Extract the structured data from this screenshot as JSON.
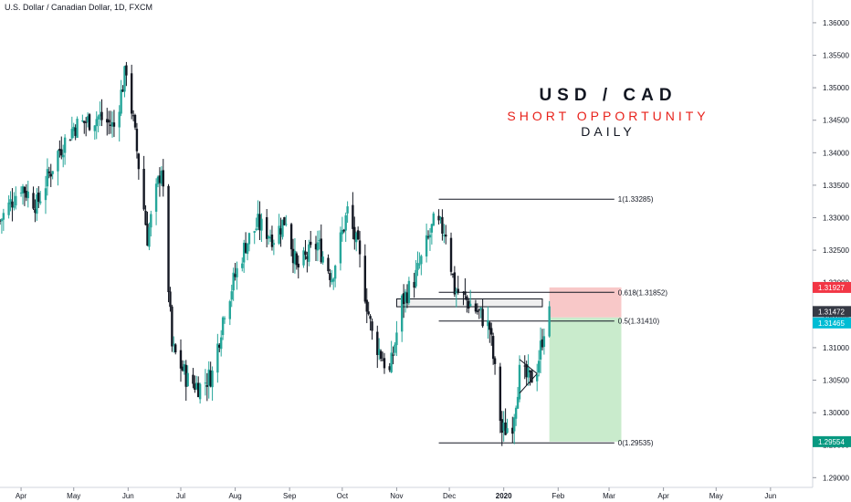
{
  "symbol_title": "U.S. Dollar / Canadian Dollar, 1D, FXCM",
  "headline": {
    "pair": "USD / CAD",
    "setup": "SHORT OPPORTUNITY",
    "timeframe": "DAILY"
  },
  "colors": {
    "up": "#26a69a",
    "down": "#131722",
    "stop_zone": "#f8c8c8",
    "target_zone": "#c9ebcc",
    "price_red": "#f23645",
    "price_dark": "#363a45",
    "price_teal": "#00bcd4",
    "price_green": "#089981",
    "headline_red": "#e8221b"
  },
  "chart_data": {
    "type": "candlestick",
    "title": "U.S. Dollar / Canadian Dollar, 1D, FXCM",
    "x_axis": {
      "tick_labels": [
        "Apr",
        "May",
        "Jun",
        "Jul",
        "Aug",
        "Sep",
        "Oct",
        "Nov",
        "Dec",
        "2020",
        "Feb",
        "Mar",
        "Apr",
        "May",
        "Jun"
      ],
      "range": [
        "2019-03-20",
        "2020-06-25"
      ]
    },
    "y_axis": {
      "tick_labels": [
        "1.36000",
        "1.35500",
        "1.35000",
        "1.34500",
        "1.34000",
        "1.33500",
        "1.33000",
        "1.32500",
        "1.32000",
        "1.31500",
        "1.31000",
        "1.30500",
        "1.30000",
        "1.29500",
        "1.29000"
      ],
      "range": [
        1.2885,
        1.3635
      ],
      "side": "right"
    },
    "close_path": [
      [
        "2019-03-20",
        1.3295
      ],
      [
        "2019-04-01",
        1.335
      ],
      [
        "2019-04-10",
        1.332
      ],
      [
        "2019-04-22",
        1.34
      ],
      [
        "2019-05-01",
        1.344
      ],
      [
        "2019-05-15",
        1.3455
      ],
      [
        "2019-05-24",
        1.344
      ],
      [
        "2019-05-31",
        1.353
      ],
      [
        "2019-06-05",
        1.3425
      ],
      [
        "2019-06-12",
        1.327
      ],
      [
        "2019-06-20",
        1.338
      ],
      [
        "2019-06-26",
        1.31
      ],
      [
        "2019-07-05",
        1.305
      ],
      [
        "2019-07-12",
        1.304
      ],
      [
        "2019-07-19",
        1.306
      ],
      [
        "2019-07-26",
        1.316
      ],
      [
        "2019-08-07",
        1.326
      ],
      [
        "2019-08-14",
        1.329
      ],
      [
        "2019-08-23",
        1.327
      ],
      [
        "2019-08-30",
        1.33
      ],
      [
        "2019-09-05",
        1.322
      ],
      [
        "2019-09-17",
        1.326
      ],
      [
        "2019-09-25",
        1.321
      ],
      [
        "2019-10-04",
        1.331
      ],
      [
        "2019-10-10",
        1.325
      ],
      [
        "2019-10-18",
        1.312
      ],
      [
        "2019-10-28",
        1.306
      ],
      [
        "2019-11-04",
        1.317
      ],
      [
        "2019-11-12",
        1.321
      ],
      [
        "2019-11-22",
        1.329
      ],
      [
        "2019-11-29",
        1.328
      ],
      [
        "2019-12-04",
        1.319
      ],
      [
        "2019-12-12",
        1.317
      ],
      [
        "2019-12-19",
        1.315
      ],
      [
        "2019-12-24",
        1.313
      ],
      [
        "2019-12-31",
        1.297
      ],
      [
        "2020-01-06",
        1.2985
      ],
      [
        "2020-01-10",
        1.306
      ],
      [
        "2020-01-16",
        1.305
      ],
      [
        "2020-01-20",
        1.307
      ],
      [
        "2020-01-24",
        1.313
      ],
      [
        "2020-01-27",
        1.315
      ]
    ],
    "fibonacci": [
      {
        "label": "1(1.33285)",
        "value": 1.33285
      },
      {
        "label": "0.618(1.31852)",
        "value": 1.31852
      },
      {
        "label": "0.5(1.31410)",
        "value": 1.3141
      },
      {
        "label": "0(1.29535)",
        "value": 1.29535
      }
    ],
    "position": {
      "side": "short",
      "entry": 1.31465,
      "stop": 1.31927,
      "target": 1.29554,
      "start": "2020-01-27",
      "end": "2020-03-08"
    },
    "price_labels": [
      {
        "value": 1.31927,
        "text": "1.31927",
        "role": "stop"
      },
      {
        "value": 1.31472,
        "text": "1.31472",
        "role": "last"
      },
      {
        "value": 1.31465,
        "text": "1.31465",
        "role": "entry"
      },
      {
        "value": 1.29554,
        "text": "1.29554",
        "role": "target"
      }
    ],
    "zones": [
      {
        "from": "2019-11-01",
        "to": "2020-01-23",
        "low": 1.3163,
        "high": 1.3175
      }
    ],
    "triangle": {
      "apex": [
        "2020-01-20",
        1.306
      ],
      "upper_start": [
        "2020-01-10",
        1.3082
      ],
      "lower_start": [
        "2020-01-10",
        1.303
      ]
    }
  }
}
